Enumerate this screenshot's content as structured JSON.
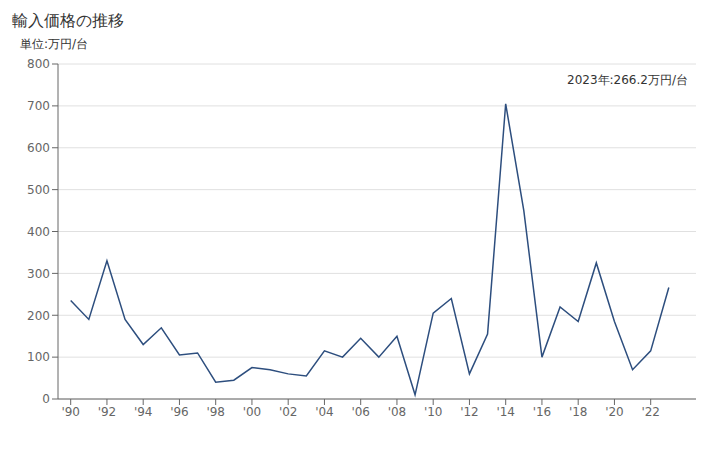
{
  "chart_data": {
    "type": "line",
    "title": "輸入価格の推移",
    "ylabel": "単位:万円/台",
    "annotation": "2023年:266.2万円/台",
    "x": [
      1990,
      1991,
      1992,
      1993,
      1994,
      1995,
      1996,
      1997,
      1998,
      1999,
      2000,
      2001,
      2002,
      2003,
      2004,
      2005,
      2006,
      2007,
      2008,
      2009,
      2010,
      2011,
      2012,
      2013,
      2014,
      2015,
      2016,
      2017,
      2018,
      2019,
      2020,
      2021,
      2022,
      2023
    ],
    "values": [
      235,
      190,
      330,
      190,
      130,
      170,
      105,
      110,
      40,
      45,
      75,
      70,
      60,
      55,
      115,
      100,
      145,
      100,
      150,
      10,
      205,
      240,
      60,
      155,
      705,
      450,
      100,
      220,
      185,
      325,
      185,
      70,
      115,
      266.2
    ],
    "color": "#2d4e7e",
    "xlim": [
      1989.3,
      2024.5
    ],
    "xticks": [
      {
        "value": 1990,
        "label": "'90"
      },
      {
        "value": 1992,
        "label": "'92"
      },
      {
        "value": 1994,
        "label": "'94"
      },
      {
        "value": 1996,
        "label": "'96"
      },
      {
        "value": 1998,
        "label": "'98"
      },
      {
        "value": 2000,
        "label": "'00"
      },
      {
        "value": 2002,
        "label": "'02"
      },
      {
        "value": 2004,
        "label": "'04"
      },
      {
        "value": 2006,
        "label": "'06"
      },
      {
        "value": 2008,
        "label": "'08"
      },
      {
        "value": 2010,
        "label": "'10"
      },
      {
        "value": 2012,
        "label": "'12"
      },
      {
        "value": 2014,
        "label": "'14"
      },
      {
        "value": 2016,
        "label": "'16"
      },
      {
        "value": 2018,
        "label": "'18"
      },
      {
        "value": 2020,
        "label": "'20"
      },
      {
        "value": 2022,
        "label": "'22"
      }
    ],
    "ylim": [
      0,
      800
    ],
    "yticks": [
      0,
      100,
      200,
      300,
      400,
      500,
      600,
      700,
      800
    ],
    "grid": true
  }
}
